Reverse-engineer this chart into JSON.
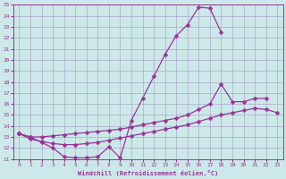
{
  "xlabel": "Windchill (Refroidissement éolien,°C)",
  "xlim": [
    -0.5,
    23.5
  ],
  "ylim": [
    11,
    25
  ],
  "xticks": [
    0,
    1,
    2,
    3,
    4,
    5,
    6,
    7,
    8,
    9,
    10,
    11,
    12,
    13,
    14,
    15,
    16,
    17,
    18,
    19,
    20,
    21,
    22,
    23
  ],
  "yticks": [
    11,
    12,
    13,
    14,
    15,
    16,
    17,
    18,
    19,
    20,
    21,
    22,
    23,
    24,
    25
  ],
  "bg_color": "#cde8e8",
  "line_color": "#993399",
  "grid_color": "#aaaacc",
  "curve1_x": [
    0,
    1,
    2,
    3,
    4,
    5,
    6,
    7,
    8,
    9,
    10,
    11,
    12,
    13,
    14,
    15,
    16,
    17,
    18
  ],
  "curve1_y": [
    13.3,
    13.0,
    12.5,
    12.0,
    11.2,
    11.1,
    11.1,
    11.2,
    12.1,
    11.1,
    14.5,
    16.5,
    18.5,
    20.5,
    22.2,
    23.2,
    24.8,
    24.7,
    22.5
  ],
  "curve2_x": [
    0,
    1,
    2,
    3,
    4,
    5,
    6,
    7,
    8,
    9,
    10,
    11,
    12,
    13,
    14,
    15,
    16,
    17,
    18,
    19,
    20,
    21,
    22
  ],
  "curve2_y": [
    13.3,
    13.0,
    13.0,
    13.1,
    13.2,
    13.3,
    13.4,
    13.5,
    13.6,
    13.7,
    13.9,
    14.1,
    14.3,
    14.5,
    14.7,
    15.0,
    15.5,
    16.0,
    17.8,
    16.2,
    16.2,
    16.5,
    16.5
  ],
  "curve3_x": [
    0,
    1,
    2,
    3,
    4,
    5,
    6,
    7,
    8,
    9,
    10,
    11,
    12,
    13,
    14,
    15,
    16,
    17,
    18,
    19,
    20,
    21,
    22,
    23
  ],
  "curve3_y": [
    13.3,
    12.8,
    12.6,
    12.4,
    12.3,
    12.3,
    12.4,
    12.5,
    12.7,
    12.9,
    13.1,
    13.3,
    13.5,
    13.7,
    13.9,
    14.1,
    14.4,
    14.7,
    15.0,
    15.2,
    15.4,
    15.6,
    15.5,
    15.2
  ]
}
